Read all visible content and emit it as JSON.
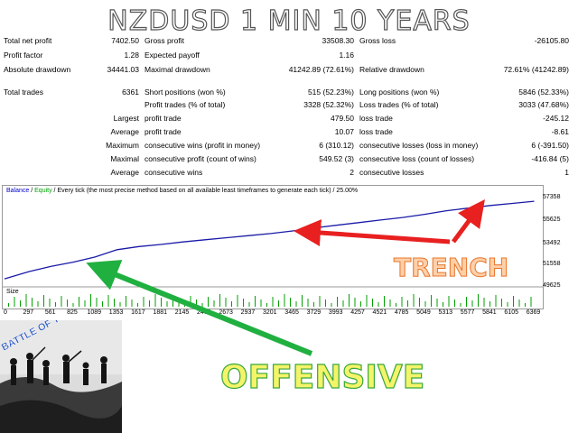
{
  "title": "NZDUSD 1 MIN 10 YEARS",
  "stats": {
    "row1": [
      "Total net profit",
      "7402.50",
      "Gross profit",
      "33508.30",
      "Gross loss",
      "-26105.80"
    ],
    "row2": [
      "Profit factor",
      "1.28",
      "Expected payoff",
      "1.16"
    ],
    "row3": [
      "Absolute drawdown",
      "34441.03",
      "Maximal drawdown",
      "41242.89 (72.61%)",
      "Relative drawdown",
      "72.61% (41242.89)"
    ],
    "row4": [
      "Total trades",
      "6361",
      "Short positions (won %)",
      "515 (52.23%)",
      "Long positions (won %)",
      "5846 (52.33%)"
    ],
    "row5": [
      "Profit trades (% of total)",
      "3328 (52.32%)",
      "Loss trades (% of total)",
      "3033 (47.68%)"
    ],
    "row6": [
      "Largest",
      "profit trade",
      "479.50",
      "loss trade",
      "-245.12"
    ],
    "row7": [
      "Average",
      "profit trade",
      "10.07",
      "loss trade",
      "-8.61"
    ],
    "row8": [
      "Maximum",
      "consecutive wins (profit in money)",
      "6 (310.12)",
      "consecutive losses (loss in money)",
      "6 (-391.50)"
    ],
    "row9": [
      "Maximal",
      "consecutive profit (count of wins)",
      "549.52 (3)",
      "consecutive loss (count of losses)",
      "-416.84 (5)"
    ],
    "row10": [
      "Average",
      "consecutive wins",
      "2",
      "consecutive losses",
      "1"
    ]
  },
  "legend": {
    "balance": "Balance",
    "sep": " / ",
    "equity": "Equity",
    "rest": " / Every tick (the most precise method based on all available least timeframes to generate each tick) / 25.00%"
  },
  "size_label": "Size",
  "annotations": {
    "trench": "TRENCH",
    "offensive": "OFFENSIVE",
    "photo_caption": "BATTLE OF THE SOMME"
  },
  "colors": {
    "balance_line": "#1a1aa8",
    "equity_line": "#00a000",
    "trench_arrow": "#e82020",
    "offensive_arrow": "#20b040"
  },
  "chart_data": {
    "type": "line",
    "series": [
      {
        "name": "Balance",
        "x": [
          0,
          297,
          561,
          825,
          1089,
          1353,
          1617,
          1881,
          2145,
          2409,
          2673,
          2937,
          3201,
          3465,
          3729,
          3993,
          4257,
          4521,
          4785,
          5049,
          5313,
          5577,
          5841,
          6105,
          6369
        ],
        "values": [
          49900,
          50600,
          51100,
          51500,
          52000,
          52700,
          53000,
          53200,
          53450,
          53650,
          53850,
          54050,
          54250,
          54500,
          54800,
          55050,
          55300,
          55550,
          55800,
          56100,
          56450,
          56700,
          56950,
          57150,
          57358
        ]
      }
    ],
    "y_ticks": [
      "57358",
      "55625",
      "53492",
      "51558",
      "49625"
    ],
    "x_ticks": [
      "0",
      "297",
      "561",
      "825",
      "1089",
      "1353",
      "1617",
      "1881",
      "2145",
      "2409",
      "2673",
      "2937",
      "3201",
      "3465",
      "3729",
      "3993",
      "4257",
      "4521",
      "4785",
      "5049",
      "5313",
      "5577",
      "5841",
      "6105",
      "6369"
    ],
    "ylim": [
      49300,
      57800
    ],
    "xlim": [
      0,
      6450
    ]
  }
}
